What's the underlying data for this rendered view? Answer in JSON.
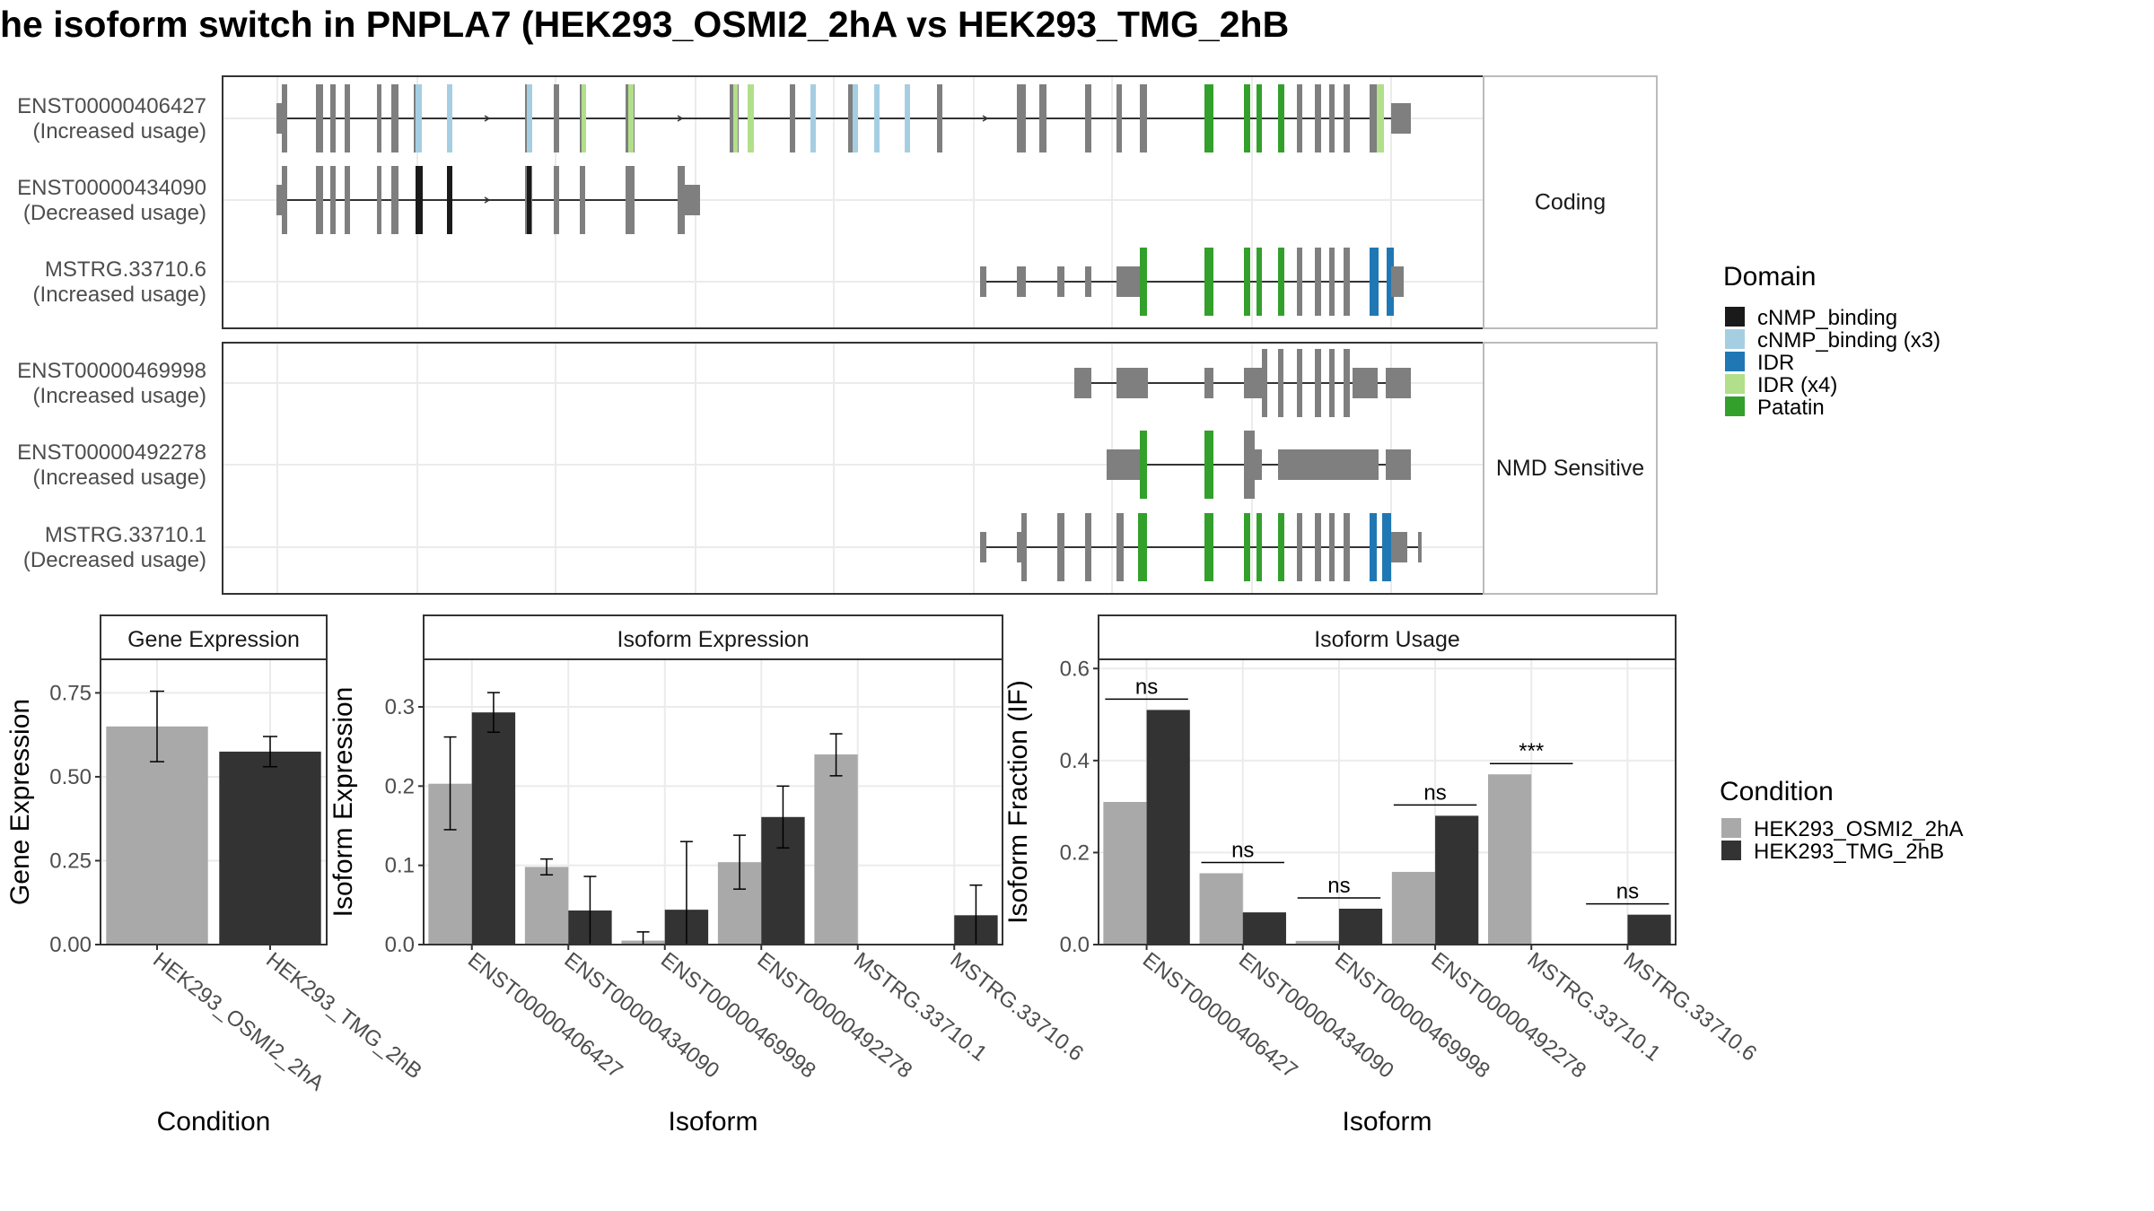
{
  "title": "he isoform switch in PNPLA7 (HEK293_OSMI2_2hA vs HEK293_TMG_2hB",
  "colors": {
    "exon": "#7f7f7f",
    "cNMP_binding": "#1a1a1a",
    "cNMP_binding_x3": "#a6cee3",
    "IDR": "#1f78b4",
    "IDR_x4": "#b2df8a",
    "Patatin": "#33a02c",
    "cond1": "#a9a9a9",
    "cond2": "#333333"
  },
  "structure": {
    "panels": [
      {
        "strip": "Coding",
        "transcripts": [
          {
            "id": "ENST00000406427",
            "usage": "(Increased usage)"
          },
          {
            "id": "ENST00000434090",
            "usage": "(Decreased usage)"
          },
          {
            "id": "MSTRG.33710.6",
            "usage": "(Increased usage)"
          }
        ]
      },
      {
        "strip": "NMD Sensitive",
        "transcripts": [
          {
            "id": "ENST00000469998",
            "usage": "(Increased usage)"
          },
          {
            "id": "ENST00000492278",
            "usage": "(Increased usage)"
          },
          {
            "id": "MSTRG.33710.1",
            "usage": "(Decreased usage)"
          }
        ]
      }
    ],
    "domain_legend": {
      "title": "Domain",
      "items": [
        {
          "label": "cNMP_binding",
          "color_key": "cNMP_binding"
        },
        {
          "label": "cNMP_binding (x3)",
          "color_key": "cNMP_binding_x3"
        },
        {
          "label": "IDR",
          "color_key": "IDR"
        },
        {
          "label": "IDR (x4)",
          "color_key": "IDR_x4"
        },
        {
          "label": "Patatin",
          "color_key": "Patatin"
        }
      ]
    }
  },
  "condition_legend": {
    "title": "Condition",
    "items": [
      "HEK293_OSMI2_2hA",
      "HEK293_TMG_2hB"
    ]
  },
  "chart_data": [
    {
      "type": "bar",
      "strip": "Gene Expression",
      "xlabel": "Condition",
      "ylabel": "Gene Expression",
      "ylim": [
        0,
        0.85
      ],
      "yticks": [
        "0.00",
        "0.25",
        "0.50",
        "0.75"
      ],
      "categories": [
        "HEK293_OSMI2_2hA",
        "HEK293_TMG_2hB"
      ],
      "values": [
        0.65,
        0.575
      ],
      "err_low": [
        0.545,
        0.53
      ],
      "err_high": [
        0.755,
        0.62
      ]
    },
    {
      "type": "bar",
      "strip": "Isoform Expression",
      "xlabel": "Isoform",
      "ylabel": "Isoform Expression",
      "ylim": [
        0,
        0.36
      ],
      "yticks": [
        "0.0",
        "0.1",
        "0.2",
        "0.3"
      ],
      "categories": [
        "ENST00000406427",
        "ENST00000434090",
        "ENST00000469998",
        "ENST00000492278",
        "MSTRG.33710.1",
        "MSTRG.33710.6"
      ],
      "series": [
        {
          "name": "HEK293_OSMI2_2hA",
          "values": [
            0.203,
            0.098,
            0.005,
            0.104,
            0.24,
            0
          ],
          "err_low": [
            0.145,
            0.088,
            0.0,
            0.07,
            0.213,
            null
          ],
          "err_high": [
            0.262,
            0.108,
            0.016,
            0.138,
            0.266,
            null
          ]
        },
        {
          "name": "HEK293_TMG_2hB",
          "values": [
            0.293,
            0.043,
            0.044,
            0.161,
            0,
            0.037
          ],
          "err_low": [
            0.268,
            0.0,
            0.0,
            0.122,
            null,
            0.0
          ],
          "err_high": [
            0.318,
            0.086,
            0.13,
            0.2,
            null,
            0.075
          ]
        }
      ]
    },
    {
      "type": "bar",
      "strip": "Isoform Usage",
      "xlabel": "Isoform",
      "ylabel": "Isoform Fraction (IF)",
      "ylim": [
        0,
        0.62
      ],
      "yticks": [
        "0.0",
        "0.2",
        "0.4",
        "0.6"
      ],
      "categories": [
        "ENST00000406427",
        "ENST00000434090",
        "ENST00000469998",
        "ENST00000492278",
        "MSTRG.33710.1",
        "MSTRG.33710.6"
      ],
      "series": [
        {
          "name": "HEK293_OSMI2_2hA",
          "values": [
            0.31,
            0.155,
            0.008,
            0.158,
            0.37,
            0
          ]
        },
        {
          "name": "HEK293_TMG_2hB",
          "values": [
            0.51,
            0.07,
            0.078,
            0.28,
            0,
            0.065
          ]
        }
      ],
      "significance": [
        "ns",
        "ns",
        "ns",
        "ns",
        "***",
        "ns"
      ]
    }
  ]
}
